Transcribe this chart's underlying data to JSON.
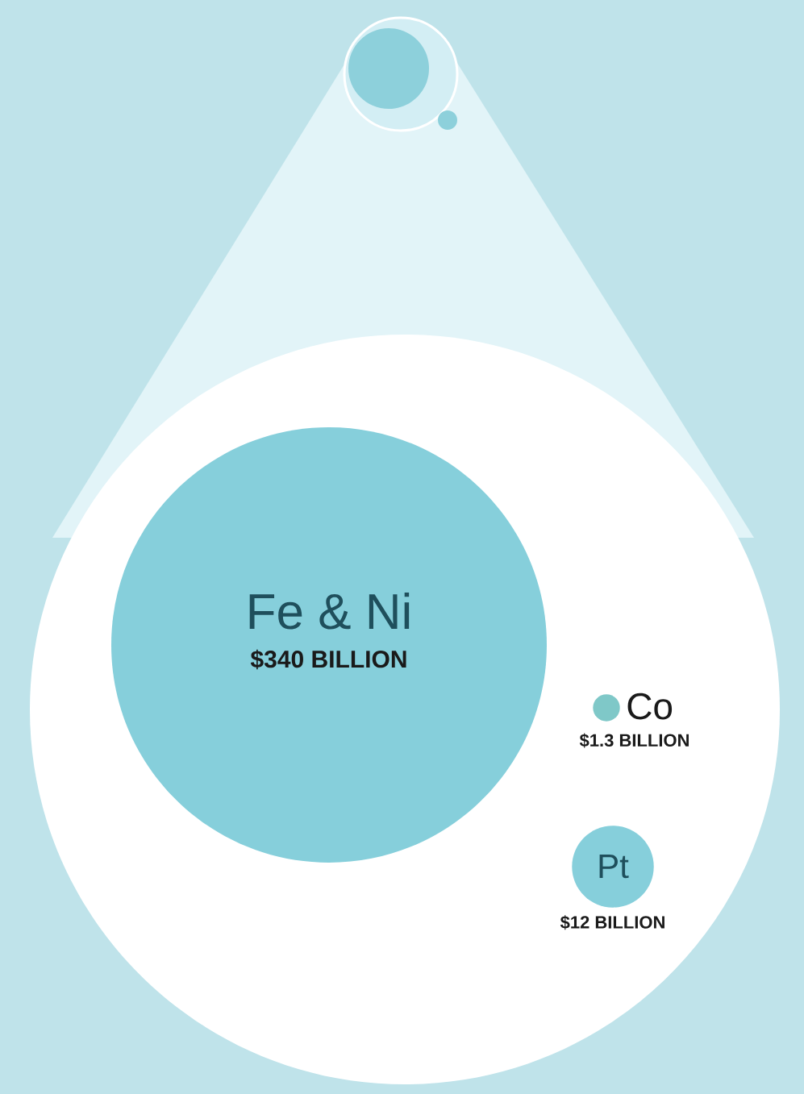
{
  "chart_data": {
    "type": "other",
    "categories": [
      "Fe & Ni",
      "Co",
      "Pt"
    ],
    "values": [
      340,
      1.3,
      12
    ],
    "value_labels": [
      "$340 BILLION",
      "$1.3 BILLION",
      "$12 BILLION"
    ],
    "colors": [
      "#86cfdb",
      "#7fc8c8",
      "#86cfdb"
    ]
  }
}
